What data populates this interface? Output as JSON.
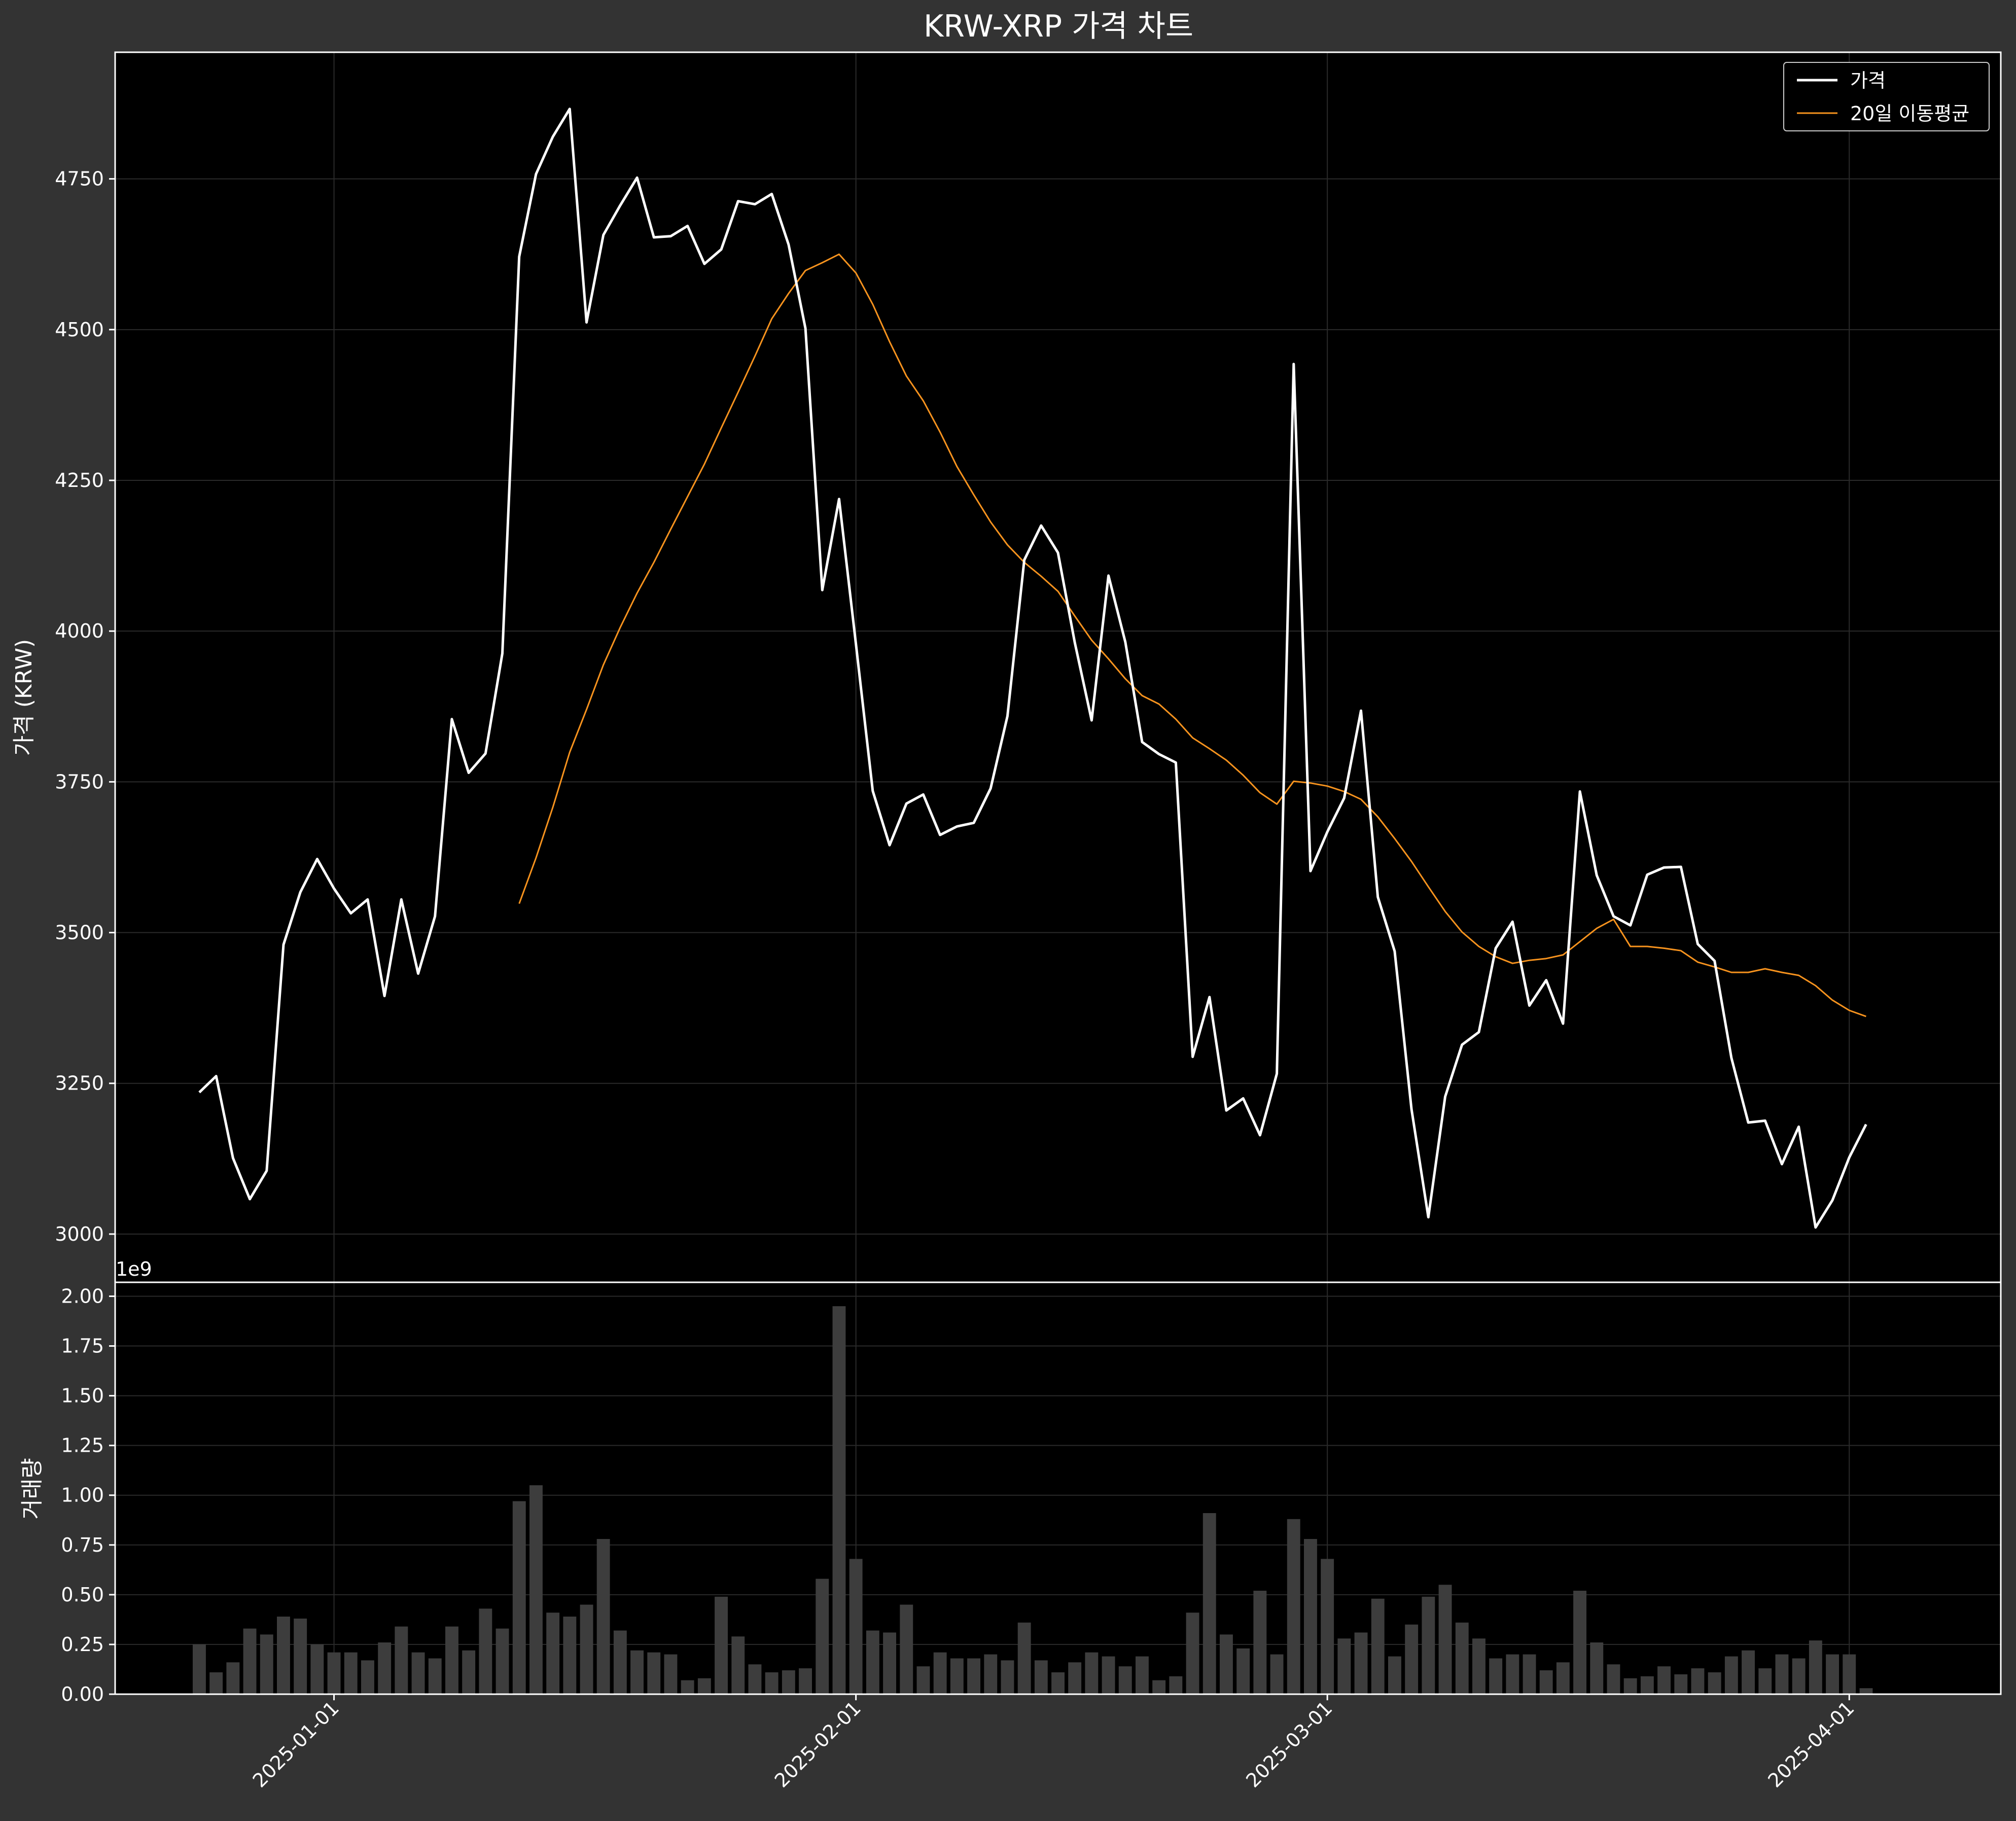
{
  "chart_data": [
    {
      "type": "line",
      "title": "KRW-XRP 가격 차트",
      "ylabel": "가격 (KRW)",
      "ylim": [
        2920,
        4960
      ],
      "yticks": [
        3000,
        3250,
        3500,
        3750,
        4000,
        4250,
        4500,
        4750
      ],
      "xlim": [
        "2024-12-19",
        "2025-04-10"
      ],
      "xticks": [
        "2025-01-01",
        "2025-02-01",
        "2025-03-01",
        "2025-04-01"
      ],
      "grid": true,
      "legend_position": "top-right",
      "series": [
        {
          "name": "가격",
          "color": "#ffffff",
          "start_date": "2024-12-24",
          "values": [
            3235,
            3262,
            3126,
            3058,
            3105,
            3480,
            3567,
            3622,
            3573,
            3532,
            3555,
            3395,
            3555,
            3432,
            3527,
            3854,
            3765,
            3797,
            3963,
            4621,
            4758,
            4820,
            4866,
            4512,
            4657,
            4706,
            4752,
            4653,
            4655,
            4672,
            4609,
            4633,
            4713,
            4708,
            4725,
            4641,
            4502,
            4068,
            4219,
            3979,
            3735,
            3645,
            3714,
            3729,
            3662,
            3676,
            3682,
            3739,
            3859,
            4118,
            4175,
            4130,
            3981,
            3852,
            4092,
            3982,
            3816,
            3796,
            3782,
            3294,
            3393,
            3205,
            3225,
            3164,
            3266,
            4443,
            3602,
            3667,
            3723,
            3868,
            3559,
            3469,
            3207,
            3028,
            3228,
            3314,
            3335,
            3474,
            3518,
            3379,
            3421,
            3349,
            3734,
            3595,
            3527,
            3512,
            3596,
            3608,
            3609,
            3481,
            3453,
            3292,
            3185,
            3188,
            3116,
            3178,
            3011,
            3056,
            3127,
            3182
          ]
        },
        {
          "name": "20일 이동평균",
          "color": "#f7931e",
          "start_date": "2025-01-12",
          "values": [
            3548,
            3624,
            3708,
            3799,
            3870,
            3944,
            4006,
            4063,
            4114,
            4169,
            4223,
            4277,
            4337,
            4396,
            4456,
            4518,
            4560,
            4598,
            4611,
            4625,
            4594,
            4542,
            4480,
            4423,
            4382,
            4330,
            4273,
            4226,
            4181,
            4143,
            4114,
            4091,
            4066,
            4025,
            3985,
            3954,
            3921,
            3893,
            3879,
            3854,
            3823,
            3805,
            3786,
            3761,
            3732,
            3713,
            3751,
            3748,
            3743,
            3734,
            3721,
            3692,
            3656,
            3618,
            3576,
            3535,
            3501,
            3477,
            3460,
            3449,
            3454,
            3457,
            3463,
            3485,
            3507,
            3522,
            3477,
            3477,
            3474,
            3470,
            3451,
            3443,
            3434,
            3434,
            3440,
            3434,
            3429,
            3412,
            3388,
            3371,
            3361
          ]
        }
      ]
    },
    {
      "type": "bar",
      "ylabel": "거래량",
      "scale_label": "1e9",
      "ylim": [
        0,
        2.07
      ],
      "yticks": [
        "0.00",
        "0.25",
        "0.50",
        "0.75",
        "1.00",
        "1.25",
        "1.50",
        "1.75",
        "2.00"
      ],
      "color": "#3d3d3d",
      "start_date": "2024-12-24",
      "series": [
        {
          "values": [
            0.25,
            0.11,
            0.16,
            0.33,
            0.3,
            0.39,
            0.38,
            0.25,
            0.21,
            0.21,
            0.17,
            0.26,
            0.34,
            0.21,
            0.18,
            0.34,
            0.22,
            0.43,
            0.33,
            0.97,
            1.05,
            0.41,
            0.39,
            0.45,
            0.78,
            0.32,
            0.22,
            0.21,
            0.2,
            0.07,
            0.08,
            0.49,
            0.29,
            0.15,
            0.11,
            0.12,
            0.13,
            0.58,
            1.95,
            0.68,
            0.32,
            0.31,
            0.45,
            0.14,
            0.21,
            0.18,
            0.18,
            0.2,
            0.17,
            0.36,
            0.17,
            0.11,
            0.16,
            0.21,
            0.19,
            0.14,
            0.19,
            0.07,
            0.09,
            0.41,
            0.91,
            0.3,
            0.23,
            0.52,
            0.2,
            0.88,
            0.78,
            0.68,
            0.28,
            0.31,
            0.48,
            0.19,
            0.35,
            0.49,
            0.55,
            0.36,
            0.28,
            0.18,
            0.2,
            0.2,
            0.12,
            0.16,
            0.52,
            0.26,
            0.15,
            0.08,
            0.09,
            0.14,
            0.1,
            0.13,
            0.11,
            0.19,
            0.22,
            0.13,
            0.2,
            0.18,
            0.27,
            0.2,
            0.2,
            0.03
          ]
        }
      ]
    }
  ]
}
